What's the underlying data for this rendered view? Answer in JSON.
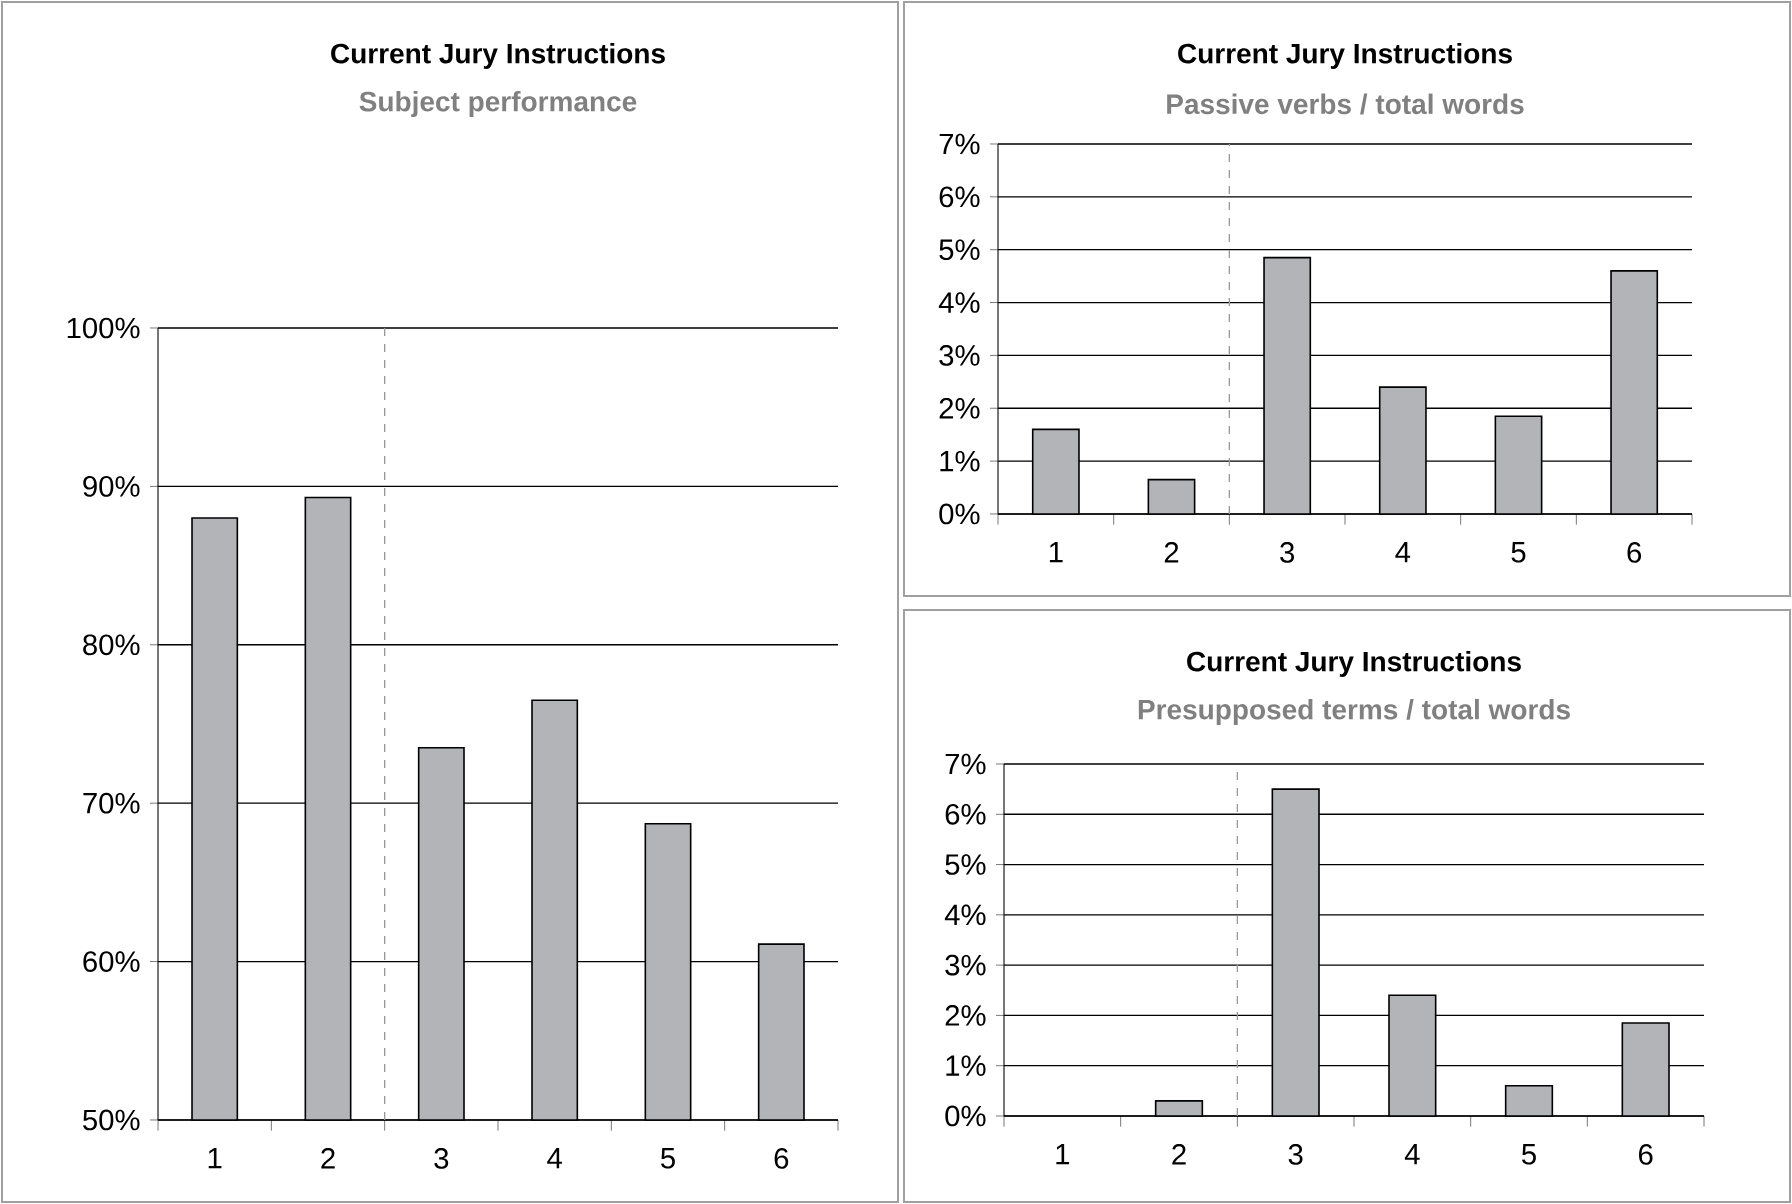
{
  "chart_data": [
    {
      "type": "bar",
      "title": "Current Jury Instructions",
      "subtitle": "Subject performance",
      "x": [
        1,
        2,
        3,
        4,
        5,
        6
      ],
      "values": [
        88,
        89.3,
        73.5,
        76.5,
        68.7,
        61.1
      ],
      "color": "#b3b4b8",
      "xlim": [
        0.5,
        6.5
      ],
      "xticks": [
        1,
        2,
        3,
        4,
        5,
        6
      ],
      "ylim": [
        50,
        100
      ],
      "yticks": [
        {
          "value": 50,
          "label": "50%"
        },
        {
          "value": 60,
          "label": "60%"
        },
        {
          "value": 70,
          "label": "70%"
        },
        {
          "value": 80,
          "label": "80%"
        },
        {
          "value": 90,
          "label": "90%"
        },
        {
          "value": 100,
          "label": "100%"
        }
      ],
      "grid": "y",
      "ref_lines": [
        {
          "axis": "x",
          "value": 2.5,
          "color": "#999999",
          "line_style": "dashed"
        }
      ]
    },
    {
      "type": "bar",
      "title": "Current Jury Instructions",
      "subtitle": "Passive verbs / total words",
      "x": [
        1,
        2,
        3,
        4,
        5,
        6
      ],
      "values": [
        1.6,
        0.65,
        4.85,
        2.4,
        1.85,
        4.6
      ],
      "color": "#b3b4b8",
      "xlim": [
        0.5,
        6.5
      ],
      "xticks": [
        1,
        2,
        3,
        4,
        5,
        6
      ],
      "ylim": [
        0,
        7
      ],
      "yticks": [
        {
          "value": 0,
          "label": "0%"
        },
        {
          "value": 1,
          "label": "1%"
        },
        {
          "value": 2,
          "label": "2%"
        },
        {
          "value": 3,
          "label": "3%"
        },
        {
          "value": 4,
          "label": "4%"
        },
        {
          "value": 5,
          "label": "5%"
        },
        {
          "value": 6,
          "label": "6%"
        },
        {
          "value": 7,
          "label": "7%"
        }
      ],
      "grid": "y",
      "ref_lines": [
        {
          "axis": "x",
          "value": 2.5,
          "color": "#999999",
          "line_style": "dashed"
        }
      ]
    },
    {
      "type": "bar",
      "title": "Current Jury Instructions",
      "subtitle": "Presupposed terms / total words",
      "x": [
        1,
        2,
        3,
        4,
        5,
        6
      ],
      "values": [
        0,
        0.3,
        6.5,
        2.4,
        0.6,
        1.85
      ],
      "color": "#b3b4b8",
      "xlim": [
        0.5,
        6.5
      ],
      "xticks": [
        1,
        2,
        3,
        4,
        5,
        6
      ],
      "ylim": [
        0,
        7
      ],
      "yticks": [
        {
          "value": 0,
          "label": "0%"
        },
        {
          "value": 1,
          "label": "1%"
        },
        {
          "value": 2,
          "label": "2%"
        },
        {
          "value": 3,
          "label": "3%"
        },
        {
          "value": 4,
          "label": "4%"
        },
        {
          "value": 5,
          "label": "5%"
        },
        {
          "value": 6,
          "label": "6%"
        },
        {
          "value": 7,
          "label": "7%"
        }
      ],
      "grid": "y",
      "ref_lines": [
        {
          "axis": "x",
          "value": 2.5,
          "color": "#999999",
          "line_style": "dashed"
        }
      ]
    }
  ]
}
